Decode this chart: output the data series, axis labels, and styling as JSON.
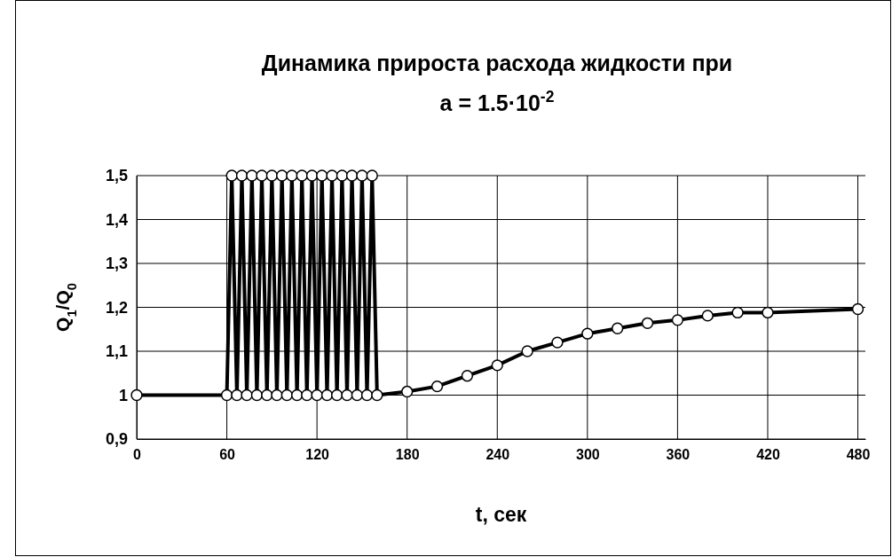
{
  "chart_data": {
    "type": "line",
    "title": "Динамика прироста расхода жидкости при",
    "subtitle": "a = 1.5·10$^{-2}$",
    "xlabel": "t, сек",
    "ylabel": "Q$_{1}$/Q$_{0}$",
    "x": [
      0,
      60,
      63.3,
      66.7,
      70,
      73.3,
      76.7,
      80,
      83.3,
      86.7,
      90,
      93.3,
      96.7,
      100,
      103.3,
      106.7,
      110,
      113.3,
      116.7,
      120,
      123.3,
      126.7,
      130,
      133.3,
      136.7,
      140,
      143.3,
      146.7,
      150,
      153.3,
      156.7,
      160,
      180,
      200,
      220,
      240,
      260,
      280,
      300,
      320,
      340,
      360,
      380,
      400,
      420,
      480
    ],
    "series": [
      {
        "color": "#000000",
        "values": [
          1,
          1,
          1.5,
          1,
          1.5,
          1,
          1.5,
          1,
          1.5,
          1,
          1.5,
          1,
          1.5,
          1,
          1.5,
          1,
          1.5,
          1,
          1.5,
          1,
          1.5,
          1,
          1.5,
          1,
          1.5,
          1,
          1.5,
          1,
          1.5,
          1,
          1.5,
          1,
          1.008,
          1.02,
          1.044,
          1.068,
          1.1,
          1.12,
          1.14,
          1.152,
          1.164,
          1.171,
          1.181,
          1.188,
          1.188,
          1.196
        ]
      }
    ],
    "xlim": [
      0,
      485
    ],
    "xticks": [
      0,
      60,
      120,
      180,
      240,
      300,
      360,
      420,
      480
    ],
    "ylim": [
      0.9,
      1.5
    ],
    "yticks": [
      {
        "value": 0.9,
        "label": "0,9"
      },
      1,
      {
        "value": 1.1,
        "label": "1,1"
      },
      {
        "value": 1.2,
        "label": "1,2"
      },
      {
        "value": 1.3,
        "label": "1,3"
      },
      {
        "value": 1.4,
        "label": "1,4"
      },
      {
        "value": 1.5,
        "label": "1,5"
      }
    ],
    "grid": true,
    "marker": "circle",
    "line_style": "solid"
  }
}
